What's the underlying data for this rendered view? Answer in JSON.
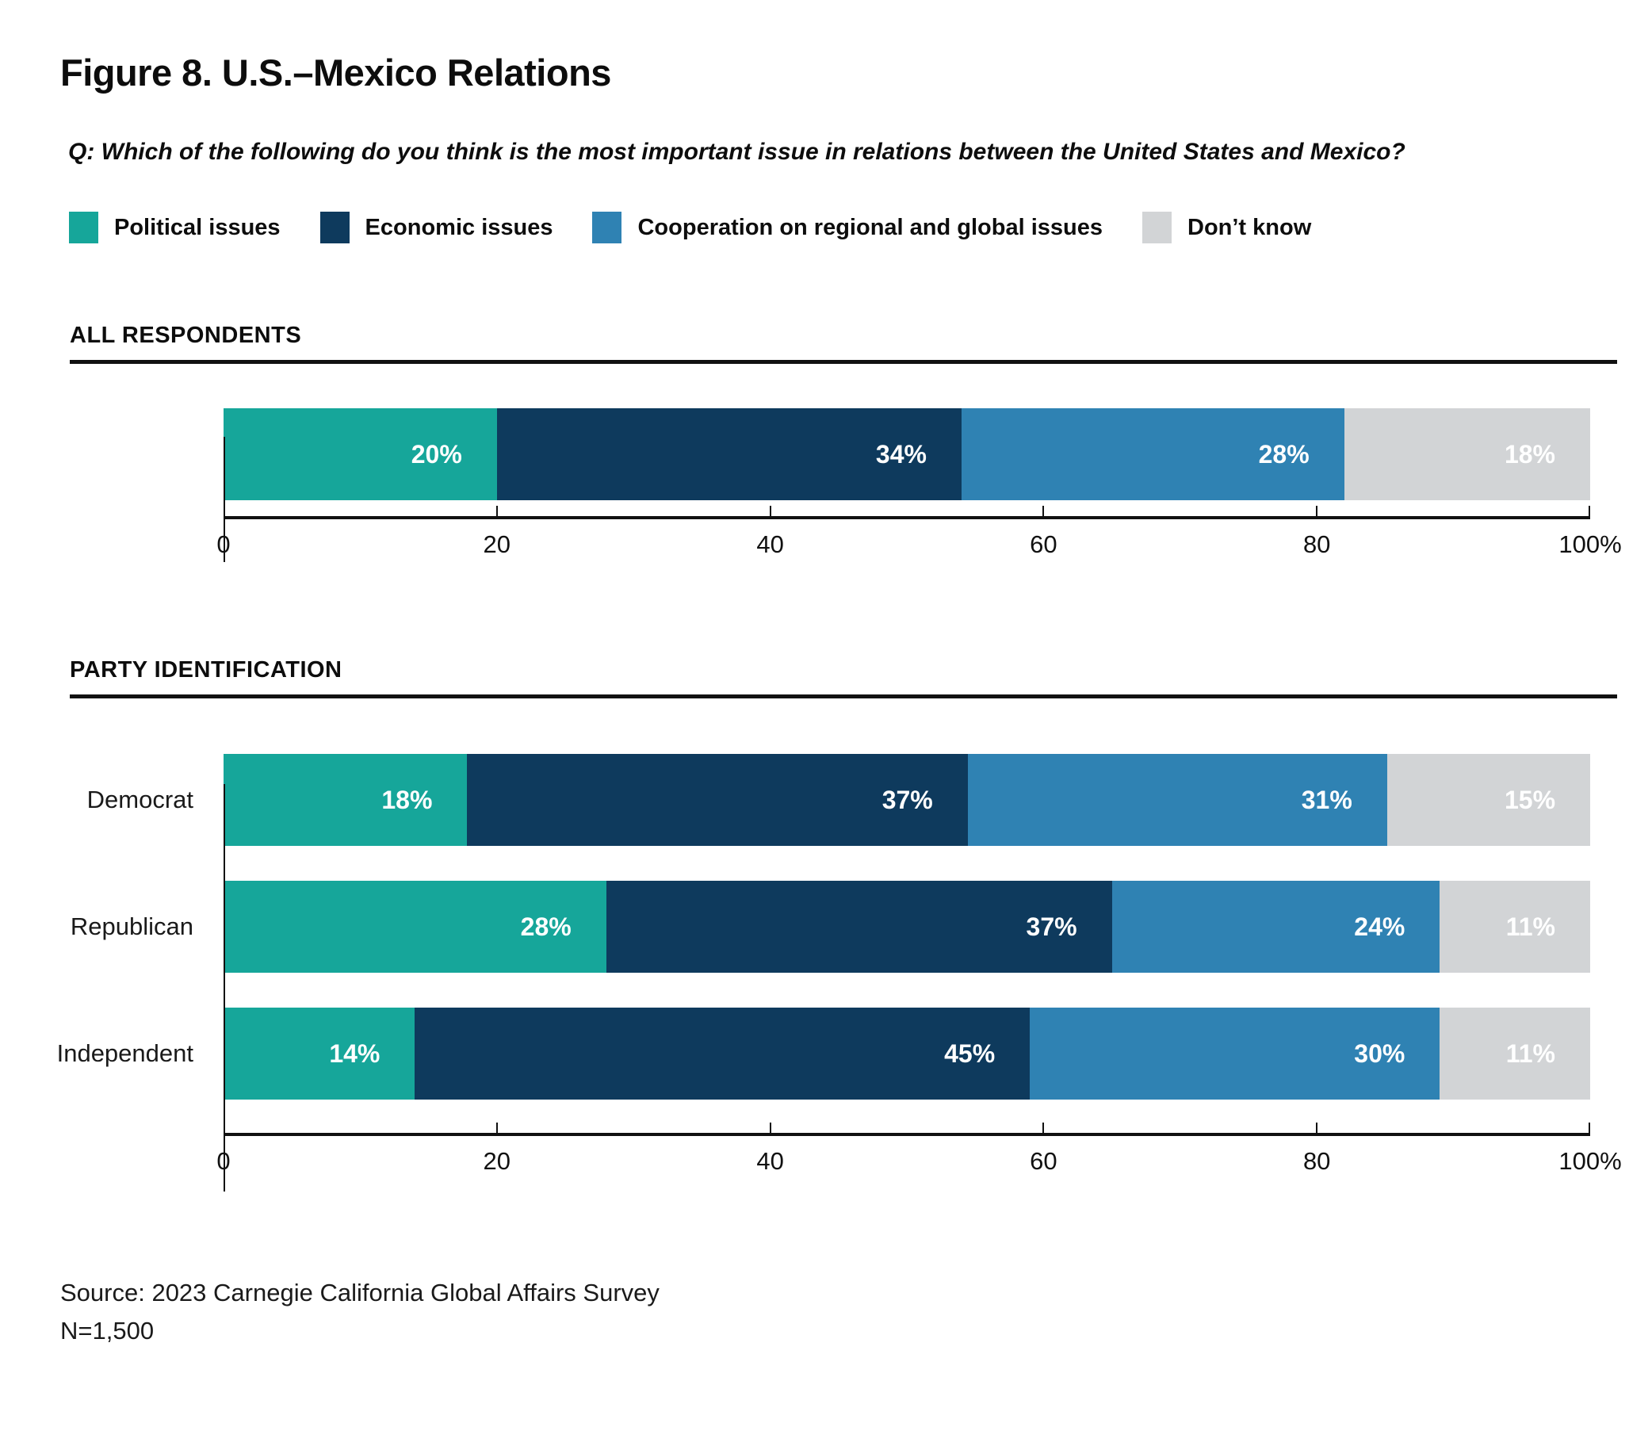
{
  "chart_data": {
    "type": "bar",
    "stacked": true,
    "orientation": "horizontal",
    "title": "Figure 8. U.S.–Mexico Relations",
    "question": "Q: Which of the following do you think is the most important issue in relations between the United States and Mexico?",
    "legend": [
      "Political issues",
      "Economic issues",
      "Cooperation on regional and global issues",
      "Don’t know"
    ],
    "colors": [
      "#16a69a",
      "#0e3a5d",
      "#2f82b3",
      "#d2d4d6"
    ],
    "xlim": [
      0,
      100
    ],
    "x_ticks": [
      {
        "value": 0,
        "label": "0"
      },
      {
        "value": 20,
        "label": "20"
      },
      {
        "value": 40,
        "label": "40"
      },
      {
        "value": 60,
        "label": "60"
      },
      {
        "value": 80,
        "label": "80"
      },
      {
        "value": 100,
        "label": "100%"
      }
    ],
    "groups": [
      {
        "section": "ALL RESPONDENTS",
        "rows": [
          {
            "label": "",
            "values": [
              20,
              34,
              28,
              18
            ],
            "value_labels": [
              "20%",
              "34%",
              "28%",
              "18%"
            ]
          }
        ]
      },
      {
        "section": "PARTY IDENTIFICATION",
        "rows": [
          {
            "label": "Democrat",
            "values": [
              18,
              37,
              31,
              15
            ],
            "value_labels": [
              "18%",
              "37%",
              "31%",
              "15%"
            ]
          },
          {
            "label": "Republican",
            "values": [
              28,
              37,
              24,
              11
            ],
            "value_labels": [
              "28%",
              "37%",
              "24%",
              "11%"
            ]
          },
          {
            "label": "Independent",
            "values": [
              14,
              45,
              30,
              11
            ],
            "value_labels": [
              "14%",
              "45%",
              "30%",
              "11%"
            ]
          }
        ]
      }
    ],
    "source": "Source: 2023 Carnegie California Global Affairs Survey",
    "sample_size": "N=1,500"
  }
}
